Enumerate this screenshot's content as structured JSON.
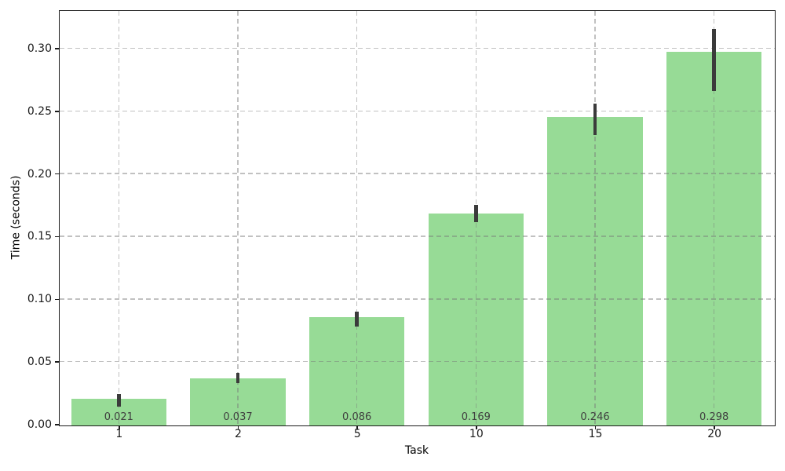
{
  "chart_data": {
    "type": "bar",
    "title": "",
    "xlabel": "Task",
    "ylabel": "Time (seconds)",
    "categories": [
      "1",
      "2",
      "5",
      "10",
      "15",
      "20"
    ],
    "values": [
      0.021,
      0.037,
      0.086,
      0.169,
      0.246,
      0.298
    ],
    "bar_labels": [
      "0.021",
      "0.037",
      "0.086",
      "0.169",
      "0.246",
      "0.298"
    ],
    "error_low": [
      0.014,
      0.033,
      0.078,
      0.161,
      0.231,
      0.266
    ],
    "error_high": [
      0.024,
      0.041,
      0.09,
      0.175,
      0.256,
      0.315
    ],
    "ytick_labels": [
      "0.00",
      "0.05",
      "0.10",
      "0.15",
      "0.20",
      "0.25",
      "0.30"
    ],
    "ylim": [
      0,
      0.33
    ],
    "bar_width_fraction": 0.8,
    "grid": "dashed gridlines on both axes, drawn above bars",
    "legend": "none",
    "colors": {
      "bar": "#97db96",
      "error_bar": "#3b3b3b",
      "grid": "#c8c8c8",
      "bar_label_text": "#3f3f3f",
      "tick_text": "#1a1a1a",
      "spine": "#1a1a1a",
      "background": "#ffffff"
    }
  }
}
